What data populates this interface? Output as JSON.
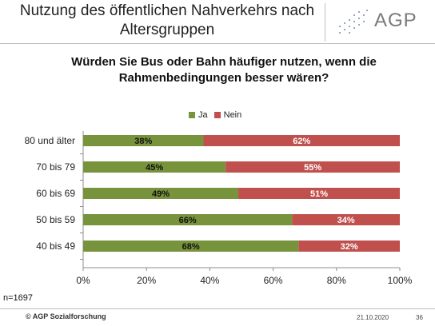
{
  "header": {
    "title_line1": "Nutzung des öffentlichen Nahverkehrs nach",
    "title_line2": "Altersgruppen",
    "logo_text": "AGP"
  },
  "question": {
    "line1": "Würden Sie Bus oder Bahn häufiger nutzen, wenn die",
    "line2": "Rahmenbedingungen besser wären?"
  },
  "legend": {
    "ja": "Ja",
    "nein": "Nein"
  },
  "chart_data": {
    "type": "bar",
    "orientation": "horizontal",
    "stacked": true,
    "percent_scale": true,
    "categories": [
      "80 und älter",
      "70 bis 79",
      "60 bis 69",
      "50 bis 59",
      "40 bis 49"
    ],
    "series": [
      {
        "name": "Ja",
        "values": [
          38,
          45,
          49,
          66,
          68
        ],
        "labels": [
          "38%",
          "45%",
          "49%",
          "66%",
          "68%"
        ],
        "color": "#77933c"
      },
      {
        "name": "Nein",
        "values": [
          62,
          55,
          51,
          34,
          32
        ],
        "labels": [
          "62%",
          "55%",
          "51%",
          "34%",
          "32%"
        ],
        "color": "#c0504d"
      }
    ],
    "xlim": [
      0,
      100
    ],
    "ticks": [
      "0%",
      "20%",
      "40%",
      "60%",
      "80%",
      "100%"
    ],
    "grid": false,
    "legend_position": "top"
  },
  "footer": {
    "n": "n=1697",
    "copyright": "© AGP Sozialforschung",
    "date": "21.10.2020",
    "page": "36"
  }
}
